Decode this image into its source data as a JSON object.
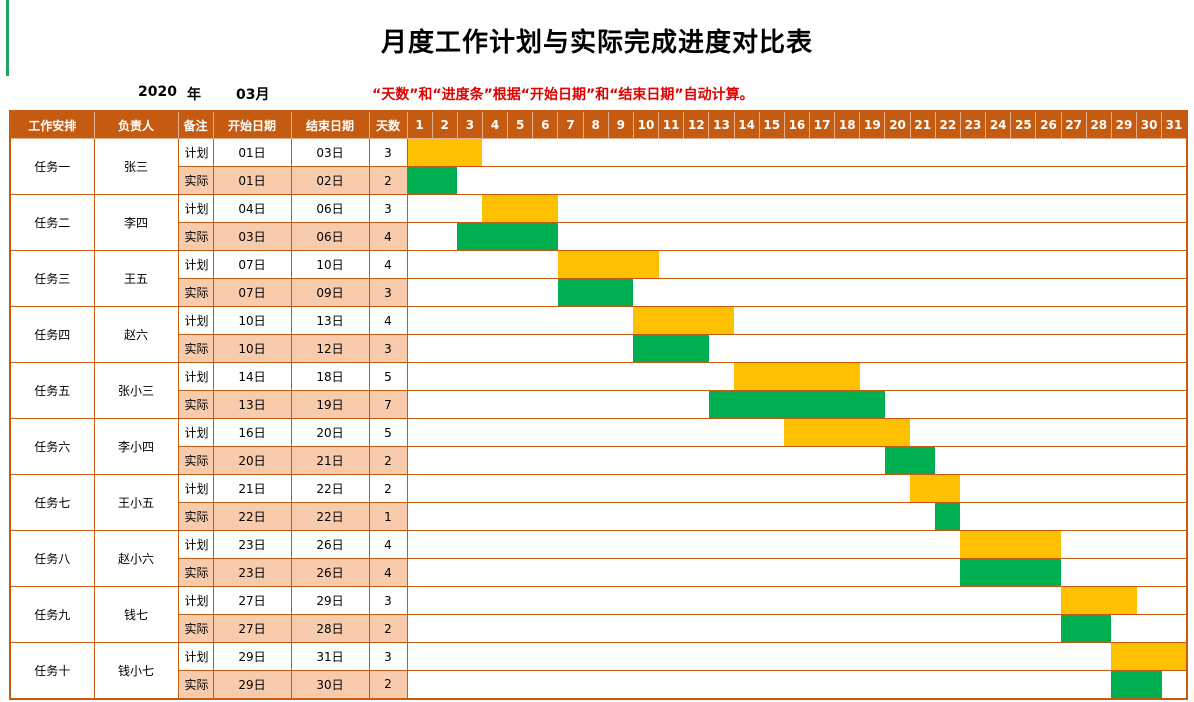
{
  "title": "月度工作计划与实际完成进度对比表",
  "year": "2020",
  "year_unit": "年",
  "month": "03月",
  "note": "“天数”和“进度条”根据“开始日期”和“结束日期”自动计算。",
  "colors": {
    "header": "#c55a11",
    "plan_bar": "#ffc000",
    "actual_bar": "#00b050",
    "actual_row": "#f8cbad"
  },
  "headers": {
    "task": "工作安排",
    "owner": "负责人",
    "remark": "备注",
    "start": "开始日期",
    "end": "结束日期",
    "days": "天数"
  },
  "day_numbers": [
    "1",
    "2",
    "3",
    "4",
    "5",
    "6",
    "7",
    "8",
    "9",
    "10",
    "11",
    "12",
    "13",
    "14",
    "15",
    "16",
    "17",
    "18",
    "19",
    "20",
    "21",
    "22",
    "23",
    "24",
    "25",
    "26",
    "27",
    "28",
    "29",
    "30",
    "31"
  ],
  "tasks": [
    {
      "name": "任务一",
      "owner": "张三",
      "plan": {
        "label": "计划",
        "start": "01日",
        "end": "03日",
        "days": "3",
        "start_day": 1,
        "end_day": 3
      },
      "actual": {
        "label": "实际",
        "start": "01日",
        "end": "02日",
        "days": "2",
        "start_day": 1,
        "end_day": 2
      }
    },
    {
      "name": "任务二",
      "owner": "李四",
      "plan": {
        "label": "计划",
        "start": "04日",
        "end": "06日",
        "days": "3",
        "start_day": 4,
        "end_day": 6
      },
      "actual": {
        "label": "实际",
        "start": "03日",
        "end": "06日",
        "days": "4",
        "start_day": 3,
        "end_day": 6
      }
    },
    {
      "name": "任务三",
      "owner": "王五",
      "plan": {
        "label": "计划",
        "start": "07日",
        "end": "10日",
        "days": "4",
        "start_day": 7,
        "end_day": 10
      },
      "actual": {
        "label": "实际",
        "start": "07日",
        "end": "09日",
        "days": "3",
        "start_day": 7,
        "end_day": 9
      }
    },
    {
      "name": "任务四",
      "owner": "赵六",
      "plan": {
        "label": "计划",
        "start": "10日",
        "end": "13日",
        "days": "4",
        "start_day": 10,
        "end_day": 13
      },
      "actual": {
        "label": "实际",
        "start": "10日",
        "end": "12日",
        "days": "3",
        "start_day": 10,
        "end_day": 12
      }
    },
    {
      "name": "任务五",
      "owner": "张小三",
      "plan": {
        "label": "计划",
        "start": "14日",
        "end": "18日",
        "days": "5",
        "start_day": 14,
        "end_day": 18
      },
      "actual": {
        "label": "实际",
        "start": "13日",
        "end": "19日",
        "days": "7",
        "start_day": 13,
        "end_day": 19
      }
    },
    {
      "name": "任务六",
      "owner": "李小四",
      "plan": {
        "label": "计划",
        "start": "16日",
        "end": "20日",
        "days": "5",
        "start_day": 16,
        "end_day": 20
      },
      "actual": {
        "label": "实际",
        "start": "20日",
        "end": "21日",
        "days": "2",
        "start_day": 20,
        "end_day": 21
      }
    },
    {
      "name": "任务七",
      "owner": "王小五",
      "plan": {
        "label": "计划",
        "start": "21日",
        "end": "22日",
        "days": "2",
        "start_day": 21,
        "end_day": 22
      },
      "actual": {
        "label": "实际",
        "start": "22日",
        "end": "22日",
        "days": "1",
        "start_day": 22,
        "end_day": 22
      }
    },
    {
      "name": "任务八",
      "owner": "赵小六",
      "plan": {
        "label": "计划",
        "start": "23日",
        "end": "26日",
        "days": "4",
        "start_day": 23,
        "end_day": 26
      },
      "actual": {
        "label": "实际",
        "start": "23日",
        "end": "26日",
        "days": "4",
        "start_day": 23,
        "end_day": 26
      }
    },
    {
      "name": "任务九",
      "owner": "钱七",
      "plan": {
        "label": "计划",
        "start": "27日",
        "end": "29日",
        "days": "3",
        "start_day": 27,
        "end_day": 29
      },
      "actual": {
        "label": "实际",
        "start": "27日",
        "end": "28日",
        "days": "2",
        "start_day": 27,
        "end_day": 28
      }
    },
    {
      "name": "任务十",
      "owner": "钱小七",
      "plan": {
        "label": "计划",
        "start": "29日",
        "end": "31日",
        "days": "3",
        "start_day": 29,
        "end_day": 31
      },
      "actual": {
        "label": "实际",
        "start": "29日",
        "end": "30日",
        "days": "2",
        "start_day": 29,
        "end_day": 30
      }
    }
  ]
}
